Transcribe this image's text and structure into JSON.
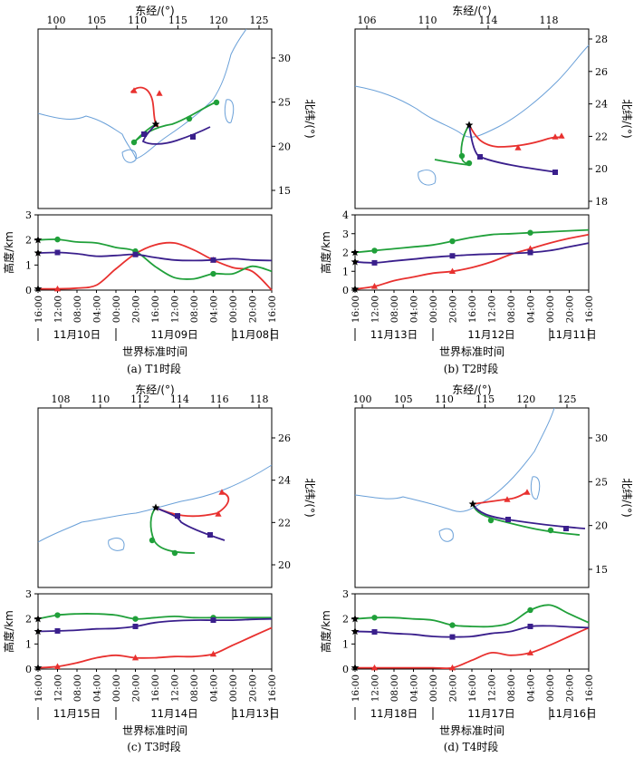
{
  "figure": {
    "colors": {
      "red": "#e8312f",
      "green": "#20a03a",
      "purple": "#3a1f8c",
      "coast": "#6aa0d8"
    },
    "common": {
      "top_axis_label": "东经/(°)",
      "right_axis_label": "北纬/(°)",
      "height_axis_label": "高度/km",
      "time_axis_label": "世界标准时间"
    }
  },
  "chart_data": [
    {
      "type": "line",
      "caption": "(a) T1时段",
      "map": {
        "lon_ticks": [
          "100",
          "105",
          "110",
          "115",
          "120",
          "125"
        ],
        "lat_ticks": [
          "30",
          "25",
          "20",
          "15"
        ]
      },
      "height_ylim": [
        0,
        3
      ],
      "height_ticks": [
        "0",
        "1",
        "2",
        "3"
      ],
      "time_ticks": [
        "16:00",
        "12:00",
        "08:00",
        "04:00",
        "00:00",
        "20:00",
        "16:00",
        "12:00",
        "08:00",
        "04:00",
        "00:00",
        "20:00",
        "16:00"
      ],
      "day_labels": [
        "11月10日",
        "11月09日",
        "11月08日"
      ],
      "heights": {
        "red": [
          0.05,
          0.05,
          0.08,
          0.2,
          0.85,
          1.45,
          1.8,
          1.88,
          1.6,
          1.2,
          0.9,
          0.75,
          0.0
        ],
        "green": [
          2.0,
          2.02,
          1.92,
          1.88,
          1.7,
          1.55,
          0.95,
          0.5,
          0.45,
          0.65,
          0.65,
          0.95,
          0.75
        ],
        "purple": [
          1.48,
          1.5,
          1.45,
          1.35,
          1.38,
          1.42,
          1.3,
          1.2,
          1.18,
          1.2,
          1.25,
          1.2,
          1.18
        ]
      }
    },
    {
      "type": "line",
      "caption": "(b) T2时段",
      "map": {
        "lon_ticks": [
          "106",
          "110",
          "114",
          "118"
        ],
        "lat_ticks": [
          "28",
          "26",
          "24",
          "22",
          "20",
          "18"
        ]
      },
      "height_ylim": [
        0,
        4
      ],
      "height_ticks": [
        "0",
        "1",
        "2",
        "3",
        "4"
      ],
      "time_ticks": [
        "16:00",
        "12:00",
        "08:00",
        "04:00",
        "00:00",
        "20:00",
        "16:00",
        "12:00",
        "08:00",
        "04:00",
        "00:00",
        "20:00",
        "16:00"
      ],
      "day_labels": [
        "11月13日",
        "11月12日",
        "11月11日"
      ],
      "heights": {
        "red": [
          0.05,
          0.2,
          0.5,
          0.7,
          0.9,
          1.0,
          1.2,
          1.5,
          1.9,
          2.2,
          2.5,
          2.75,
          2.95
        ],
        "green": [
          2.0,
          2.1,
          2.2,
          2.3,
          2.4,
          2.6,
          2.8,
          2.95,
          3.0,
          3.05,
          3.1,
          3.15,
          3.2
        ],
        "purple": [
          1.5,
          1.45,
          1.55,
          1.65,
          1.75,
          1.82,
          1.88,
          1.92,
          1.95,
          2.0,
          2.1,
          2.3,
          2.5
        ]
      }
    },
    {
      "type": "line",
      "caption": "(c) T3时段",
      "map": {
        "lon_ticks": [
          "108",
          "110",
          "112",
          "114",
          "116",
          "118"
        ],
        "lat_ticks": [
          "26",
          "24",
          "22",
          "20"
        ]
      },
      "height_ylim": [
        0,
        3
      ],
      "height_ticks": [
        "0",
        "1",
        "2",
        "3"
      ],
      "time_ticks": [
        "16:00",
        "12:00",
        "08:00",
        "04:00",
        "00:00",
        "20:00",
        "16:00",
        "12:00",
        "08:00",
        "04:00",
        "00:00",
        "20:00",
        "16:00"
      ],
      "day_labels": [
        "11月15日",
        "11月14日",
        "11月13日"
      ],
      "heights": {
        "red": [
          0.05,
          0.1,
          0.25,
          0.45,
          0.55,
          0.45,
          0.45,
          0.5,
          0.5,
          0.6,
          0.95,
          1.3,
          1.65
        ],
        "green": [
          2.0,
          2.15,
          2.2,
          2.2,
          2.15,
          2.0,
          2.05,
          2.1,
          2.05,
          2.05,
          2.05,
          2.05,
          2.05
        ],
        "purple": [
          1.5,
          1.52,
          1.55,
          1.6,
          1.62,
          1.7,
          1.85,
          1.92,
          1.95,
          1.95,
          1.95,
          1.98,
          2.0
        ]
      }
    },
    {
      "type": "line",
      "caption": "(d) T4时段",
      "map": {
        "lon_ticks": [
          "100",
          "105",
          "110",
          "115",
          "120",
          "125"
        ],
        "lat_ticks": [
          "30",
          "25",
          "20",
          "15"
        ]
      },
      "height_ylim": [
        0,
        3
      ],
      "height_ticks": [
        "0",
        "1",
        "2",
        "3"
      ],
      "time_ticks": [
        "16:00",
        "12:00",
        "08:00",
        "04:00",
        "00:00",
        "20:00",
        "16:00",
        "12:00",
        "08:00",
        "04:00",
        "00:00",
        "20:00",
        "16:00"
      ],
      "day_labels": [
        "11月18日",
        "11月17日",
        "11月16日"
      ],
      "heights": {
        "red": [
          0.05,
          0.05,
          0.05,
          0.05,
          0.05,
          0.05,
          0.35,
          0.65,
          0.55,
          0.65,
          0.95,
          1.3,
          1.65
        ],
        "green": [
          2.0,
          2.05,
          2.05,
          2.0,
          1.95,
          1.75,
          1.7,
          1.7,
          1.85,
          2.35,
          2.55,
          2.2,
          1.85
        ],
        "purple": [
          1.5,
          1.48,
          1.42,
          1.38,
          1.3,
          1.28,
          1.3,
          1.42,
          1.5,
          1.7,
          1.72,
          1.68,
          1.65
        ]
      }
    }
  ]
}
